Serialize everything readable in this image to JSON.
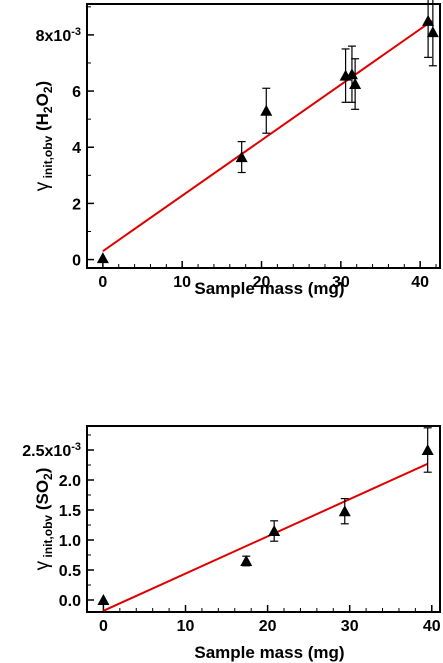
{
  "chart_data": [
    {
      "type": "scatter",
      "xlabel": "Sample mass (mg)",
      "ylabel": {
        "main": "γ",
        "sub": "init,obv",
        "species_prefix": "(H",
        "sub2": "2",
        "mid": "O",
        "sub3": "2",
        "species_suffix": ")"
      },
      "xlim": [
        -2,
        42.5
      ],
      "ylim": [
        -0.0003,
        0.0091
      ],
      "x_ticks": [
        0,
        10,
        20,
        30,
        40
      ],
      "x_tick_labels": [
        "0",
        "10",
        "20",
        "30",
        "40"
      ],
      "y_ticks": [
        0,
        0.002,
        0.004,
        0.006,
        0.008
      ],
      "y_tick_labels": [
        "0",
        "2",
        "4",
        "6",
        "8x10"
      ],
      "y_exponent": "-3",
      "grid": false,
      "marker": "triangle",
      "marker_color": "#000000",
      "fit_color": "#e00000",
      "series": [
        {
          "x": [
            0,
            17.5,
            20.6,
            30.6,
            31.4,
            31.8,
            41.0,
            41.6
          ],
          "y": [
            5e-05,
            0.00365,
            0.0053,
            0.00655,
            0.0066,
            0.00625,
            0.0085,
            0.0081
          ],
          "y_err": [
            0,
            0.00055,
            0.0008,
            0.00095,
            0.001,
            0.0009,
            0.0013,
            0.0012
          ]
        }
      ],
      "fit": {
        "x": [
          0,
          41.5
        ],
        "y": [
          0.0003,
          0.0085
        ]
      }
    },
    {
      "type": "scatter",
      "xlabel": "Sample mass (mg)",
      "ylabel": {
        "main": "γ",
        "sub": "init,obv",
        "species_prefix": "(SO",
        "sub2": "2",
        "mid": "",
        "sub3": "",
        "species_suffix": ")"
      },
      "xlim": [
        -2,
        41
      ],
      "ylim": [
        -0.0002,
        0.0029
      ],
      "x_ticks": [
        0,
        10,
        20,
        30,
        40
      ],
      "x_tick_labels": [
        "0",
        "10",
        "20",
        "30",
        "40"
      ],
      "y_ticks": [
        0,
        0.0005,
        0.001,
        0.0015,
        0.002,
        0.0025
      ],
      "y_tick_labels": [
        "0.0",
        "0.5",
        "1.0",
        "1.5",
        "2.0",
        "2.5x10"
      ],
      "y_exponent": "-3",
      "grid": false,
      "marker": "triangle",
      "marker_color": "#000000",
      "fit_color": "#e00000",
      "series": [
        {
          "x": [
            0,
            17.4,
            20.8,
            29.4,
            39.5
          ],
          "y": [
            0.0,
            0.00065,
            0.00115,
            0.00148,
            0.0025
          ],
          "y_err": [
            0,
            8e-05,
            0.00017,
            0.00021,
            0.00037
          ]
        }
      ],
      "fit": {
        "x": [
          0,
          39.5
        ],
        "y": [
          -0.00018,
          0.00227
        ]
      }
    }
  ]
}
